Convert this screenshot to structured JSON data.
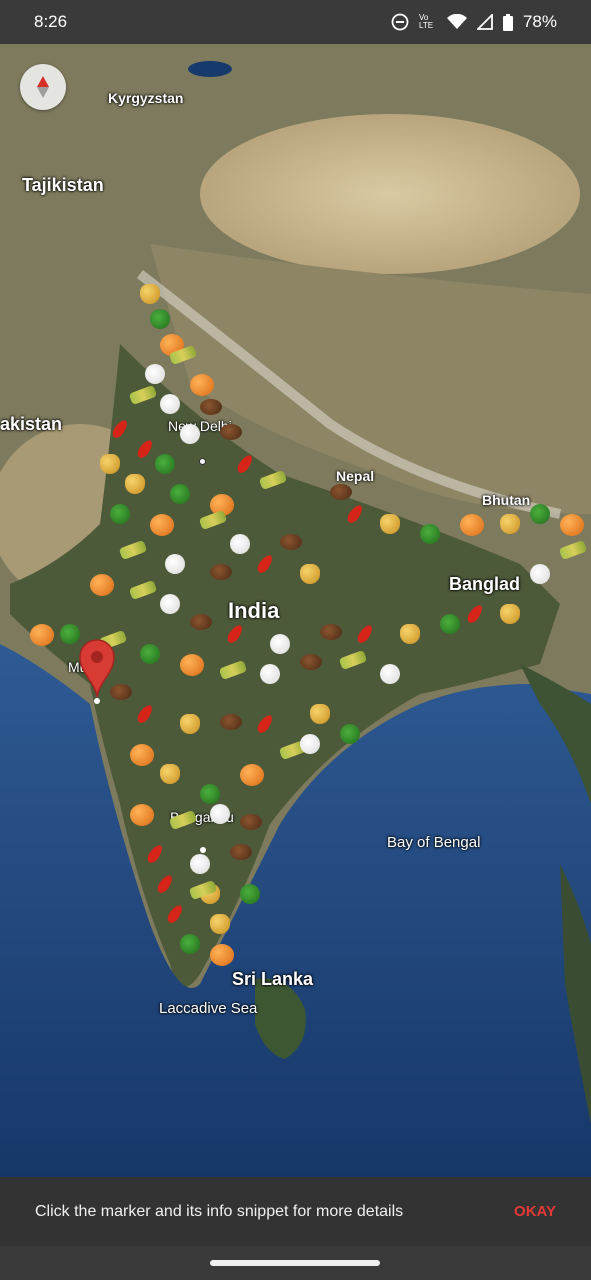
{
  "status_bar": {
    "time": "8:26",
    "battery": "78%",
    "volte_label": "Vo LTE",
    "icons": [
      "do-not-disturb-icon",
      "volte-icon",
      "wifi-icon",
      "signal-icon",
      "battery-icon"
    ]
  },
  "map": {
    "labels": {
      "kyrgyzstan": "Kyrgyzstan",
      "tajikistan": "Tajikistan",
      "pakistan": "akistan",
      "new_delhi": "New Delhi",
      "nepal": "Nepal",
      "bhutan": "Bhutan",
      "bangladesh": "Banglad",
      "india": "India",
      "mumbai": "Mumb",
      "bengaluru": "Bengaluru",
      "bay_of_bengal": "Bay of Bengal",
      "sri_lanka": "Sri Lanka",
      "laccadive_sea": "Laccadive Sea"
    },
    "compass_icon": "compass-icon",
    "selected_marker_icon": "map-pin-icon",
    "marker_types": [
      "wheat-icon",
      "pumpkin-icon",
      "cotton-icon",
      "chili-icon",
      "leaf-icon",
      "sugarcane-icon",
      "coffee-bean-icon"
    ],
    "colors": {
      "pin": "#d83a34",
      "land": "#6f7052",
      "water": "#1c3f78"
    }
  },
  "snackbar": {
    "message": "Click the marker and its info snippet for more details",
    "action_label": "OKAY",
    "action_color": "#e53935"
  }
}
